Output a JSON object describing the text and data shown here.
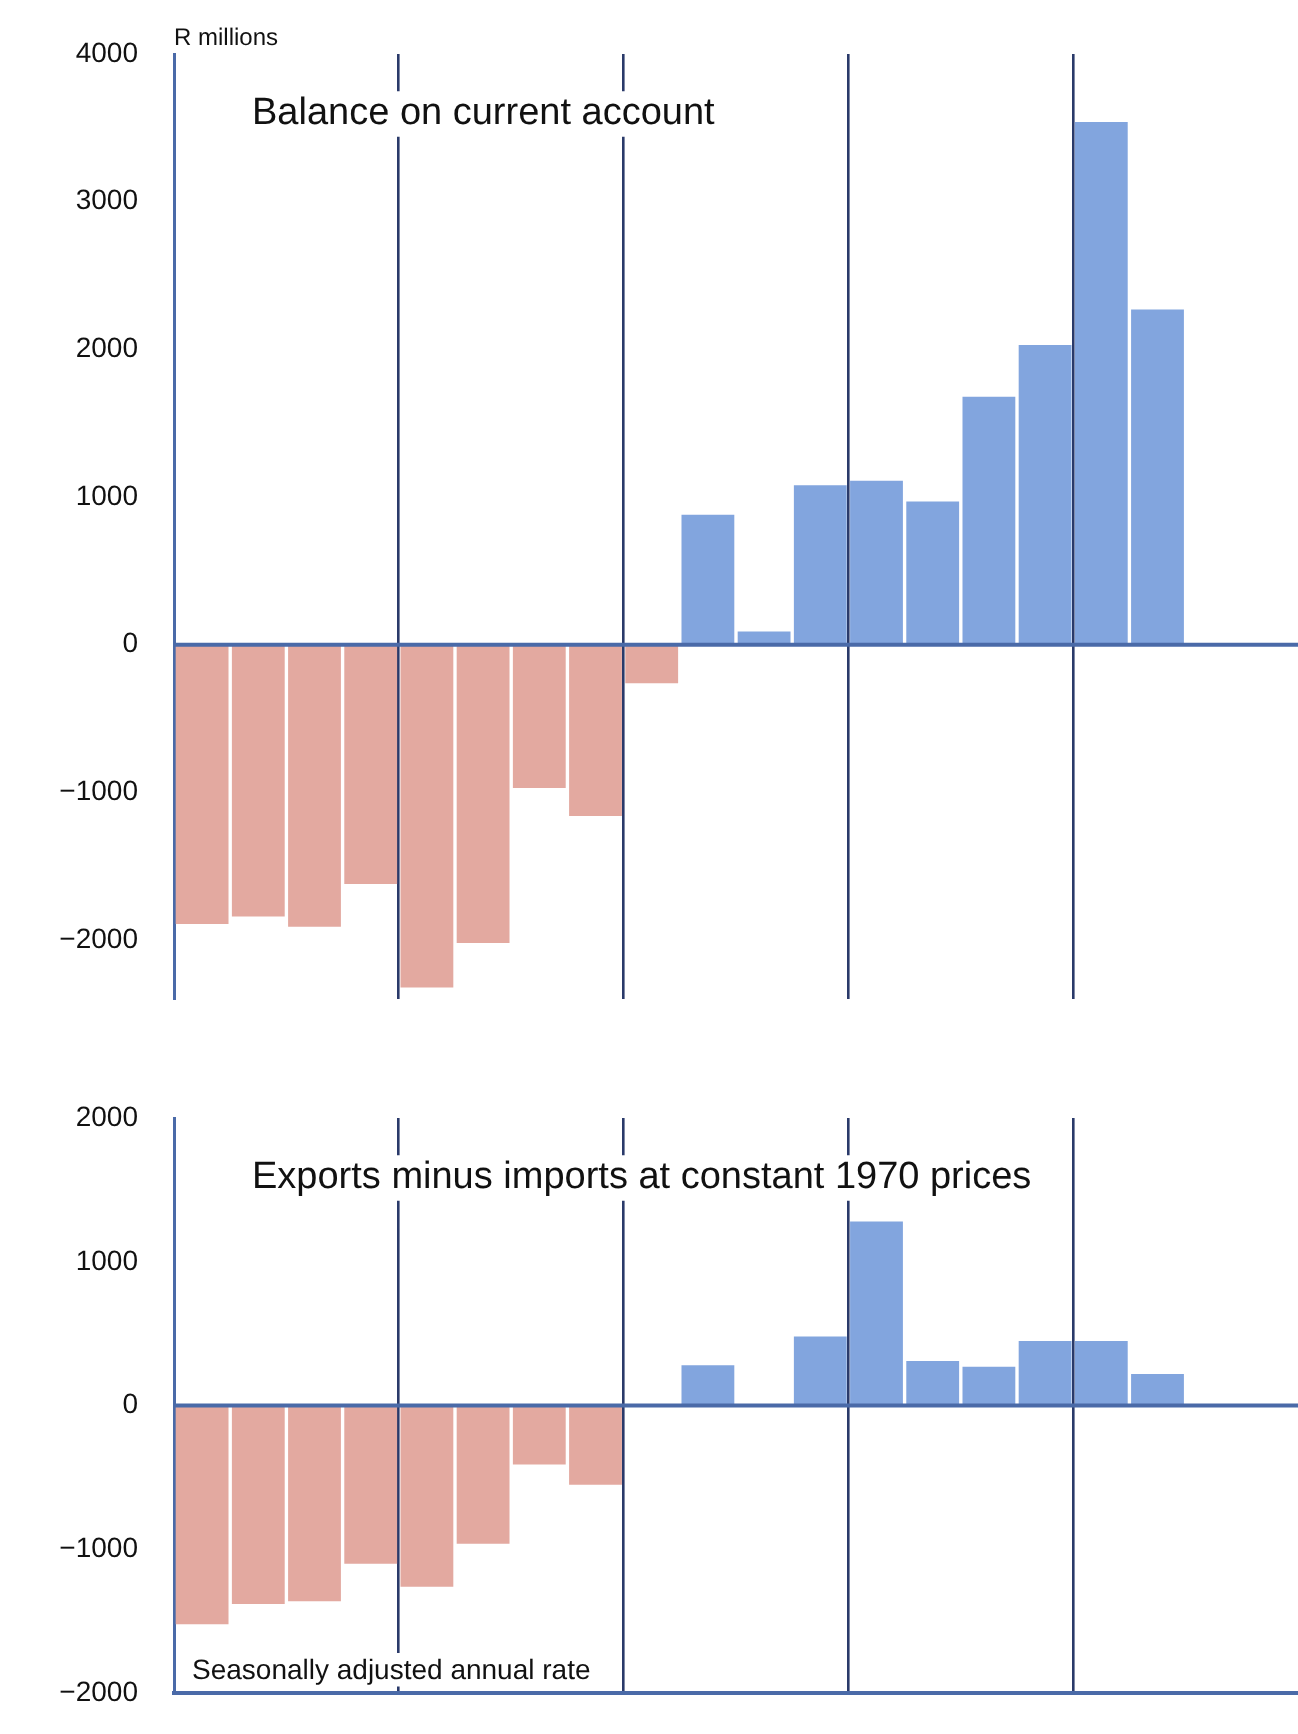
{
  "chart_data": [
    {
      "type": "bar",
      "title": "Balance on current account",
      "ylabel": "R millions",
      "categories": [
        null,
        null,
        null,
        null,
        null,
        null,
        null,
        null,
        null,
        null,
        null,
        null,
        null,
        null,
        null,
        null,
        null,
        null,
        null,
        null
      ],
      "values": [
        -1890,
        -1840,
        -1910,
        -1620,
        -2320,
        -2020,
        -970,
        -1160,
        -260,
        880,
        90,
        1080,
        1110,
        970,
        1680,
        2030,
        3540,
        2270,
        null,
        null
      ],
      "colors": [
        "#e3a9a0",
        "#e3a9a0",
        "#e3a9a0",
        "#e3a9a0",
        "#e3a9a0",
        "#e3a9a0",
        "#e3a9a0",
        "#e3a9a0",
        "#e3a9a0",
        "#82a5de",
        "#82a5de",
        "#82a5de",
        "#82a5de",
        "#82a5de",
        "#82a5de",
        "#82a5de",
        "#82a5de",
        "#82a5de",
        "#82a5de",
        "#82a5de"
      ],
      "ylim": [
        -2400,
        4000
      ],
      "yticks": [
        -2000,
        -1000,
        0,
        1000,
        2000,
        3000,
        4000
      ],
      "grid": "x",
      "tick_labels": "y",
      "ref_lines": [
        {
          "axis": "y",
          "value": 0,
          "color": "#4a6aa8"
        }
      ]
    },
    {
      "type": "bar",
      "title": "Exports minus imports at constant 1970 prices",
      "annotations": [
        "Seasonally adjusted annual rate"
      ],
      "categories": [
        null,
        null,
        null,
        null,
        null,
        null,
        null,
        null,
        null,
        null,
        null,
        null,
        null,
        null,
        null,
        null,
        null,
        null,
        null,
        null
      ],
      "values": [
        -1520,
        -1380,
        -1360,
        -1100,
        -1260,
        -960,
        -410,
        -550,
        null,
        280,
        null,
        480,
        1280,
        310,
        270,
        450,
        450,
        220,
        null,
        null
      ],
      "colors": [
        "#e3a9a0",
        "#e3a9a0",
        "#e3a9a0",
        "#e3a9a0",
        "#e3a9a0",
        "#e3a9a0",
        "#e3a9a0",
        "#e3a9a0",
        "#e3a9a0",
        "#82a5de",
        "#82a5de",
        "#82a5de",
        "#82a5de",
        "#82a5de",
        "#82a5de",
        "#82a5de",
        "#82a5de",
        "#82a5de",
        "#82a5de",
        "#82a5de"
      ],
      "ylim": [
        -2000,
        2000
      ],
      "yticks": [
        -2000,
        -1000,
        0,
        1000,
        2000
      ],
      "grid": "x",
      "tick_labels": "y",
      "ref_lines": [
        {
          "axis": "y",
          "value": 0,
          "color": "#4a6aa8"
        }
      ]
    }
  ]
}
